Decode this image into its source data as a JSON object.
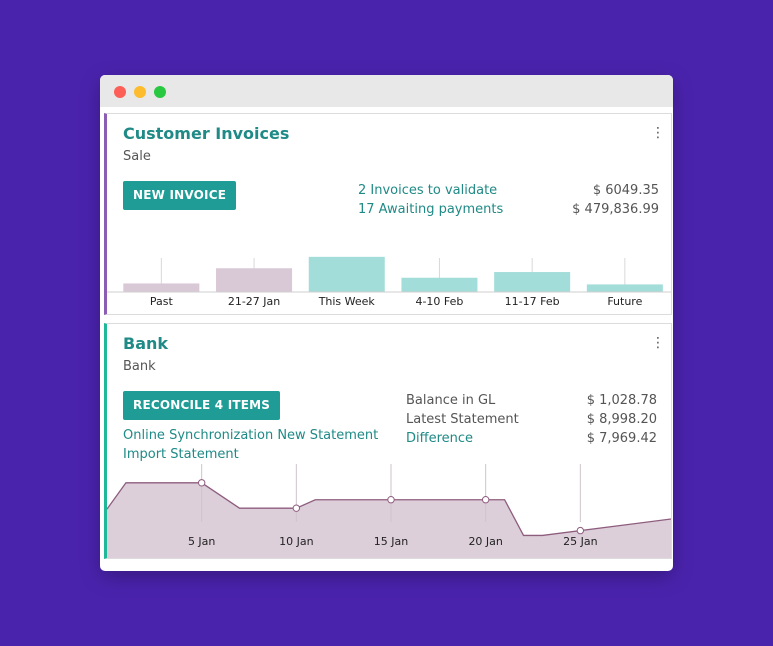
{
  "window": {
    "controls": [
      "close",
      "minimize",
      "maximize"
    ]
  },
  "invoices": {
    "title": "Customer Invoices",
    "subtitle": "Sale",
    "menu_icon": "kebab-icon",
    "button_label": "NEW INVOICE",
    "stats": [
      {
        "label": "2 Invoices to validate",
        "amount": "$ 6049.35"
      },
      {
        "label": "17 Awaiting payments",
        "amount": "$ 479,836.99"
      }
    ]
  },
  "bank": {
    "title": "Bank",
    "subtitle": "Bank",
    "menu_icon": "kebab-icon",
    "button_label": "RECONCILE 4 ITEMS",
    "links": [
      "Online Synchronization New Statement",
      "Import Statement"
    ],
    "balances": [
      {
        "label": "Balance in GL",
        "amount": "$ 1,028.78",
        "link": false
      },
      {
        "label": "Latest Statement",
        "amount": "$ 8,998.20",
        "link": false
      },
      {
        "label": "Difference",
        "amount": "$ 7,969.42",
        "link": true
      }
    ]
  },
  "colors": {
    "background": "#4a23ad",
    "accent": "#1f8a86",
    "button": "#1f9c95",
    "past_bar": "#d9c8d6",
    "future_bar": "#a3ddd9",
    "bank_line": "#8e5d7e",
    "bank_fill": "#dccfd9"
  },
  "chart_data": [
    {
      "type": "bar",
      "categories": [
        "Past",
        "21-27 Jan",
        "This Week",
        "4-10 Feb",
        "11-17 Feb",
        "Future"
      ],
      "values": [
        9,
        25,
        37,
        15,
        21,
        8
      ],
      "bar_kind": [
        "past",
        "past",
        "future",
        "future",
        "future",
        "future"
      ],
      "ylim": [
        0,
        40
      ],
      "title": "",
      "xlabel": "",
      "ylabel": ""
    },
    {
      "type": "area",
      "x_ticks": [
        "5 Jan",
        "10 Jan",
        "15 Jan",
        "20 Jan",
        "25 Jan"
      ],
      "x": [
        0,
        1,
        5,
        7,
        10,
        11,
        12,
        21,
        22,
        23,
        30
      ],
      "values": [
        52,
        80,
        80,
        53,
        53,
        62,
        62,
        62,
        24,
        24,
        42
      ],
      "markers": [
        5,
        10,
        15,
        20,
        25
      ],
      "xlim": [
        0,
        30
      ],
      "ylim": [
        0,
        100
      ],
      "title": "",
      "xlabel": "",
      "ylabel": ""
    }
  ]
}
